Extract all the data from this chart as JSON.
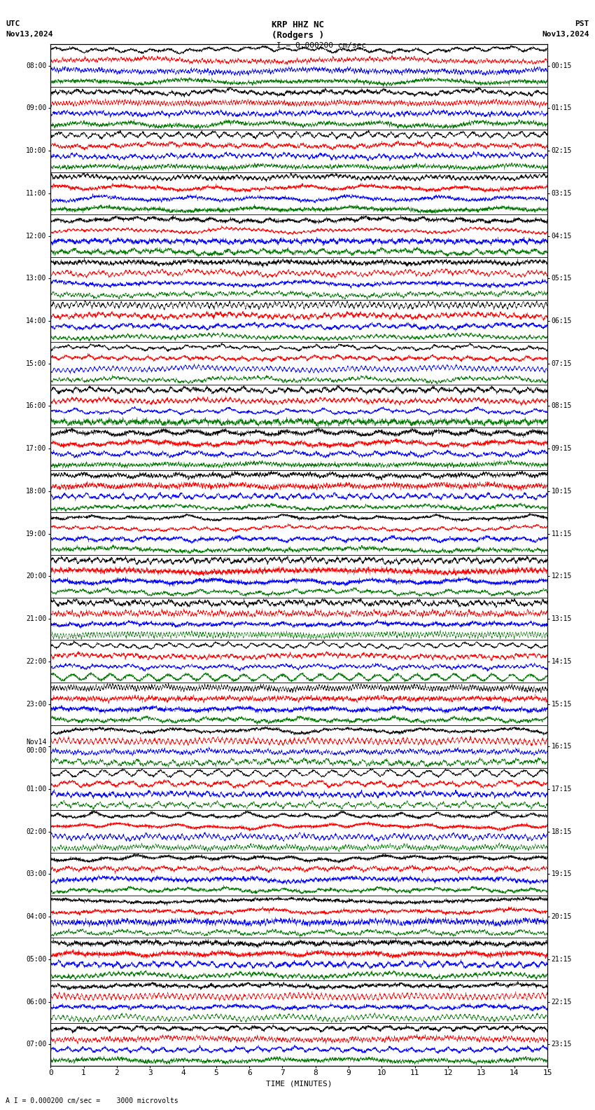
{
  "title_line1": "KRP HHZ NC",
  "title_line2": "(Rodgers )",
  "scale_label": "I = 0.000200 cm/sec",
  "bottom_label": "A I = 0.000200 cm/sec =    3000 microvolts",
  "utc_label": "UTC",
  "utc_date": "Nov13,2024",
  "pst_label": "PST",
  "pst_date": "Nov13,2024",
  "xlabel": "TIME (MINUTES)",
  "left_times": [
    "08:00",
    "09:00",
    "10:00",
    "11:00",
    "12:00",
    "13:00",
    "14:00",
    "15:00",
    "16:00",
    "17:00",
    "18:00",
    "19:00",
    "20:00",
    "21:00",
    "22:00",
    "23:00",
    "Nov14\n00:00",
    "01:00",
    "02:00",
    "03:00",
    "04:00",
    "05:00",
    "06:00",
    "07:00"
  ],
  "right_times": [
    "00:15",
    "01:15",
    "02:15",
    "03:15",
    "04:15",
    "05:15",
    "06:15",
    "07:15",
    "08:15",
    "09:15",
    "10:15",
    "11:15",
    "12:15",
    "13:15",
    "14:15",
    "15:15",
    "16:15",
    "17:15",
    "18:15",
    "19:15",
    "20:15",
    "21:15",
    "22:15",
    "23:15"
  ],
  "n_rows": 24,
  "n_samples_per_row": 5000,
  "bg_color": "#ffffff",
  "colors": [
    "#000000",
    "#ff0000",
    "#0000ff",
    "#007700"
  ],
  "font_size": 8,
  "title_font_size": 9
}
